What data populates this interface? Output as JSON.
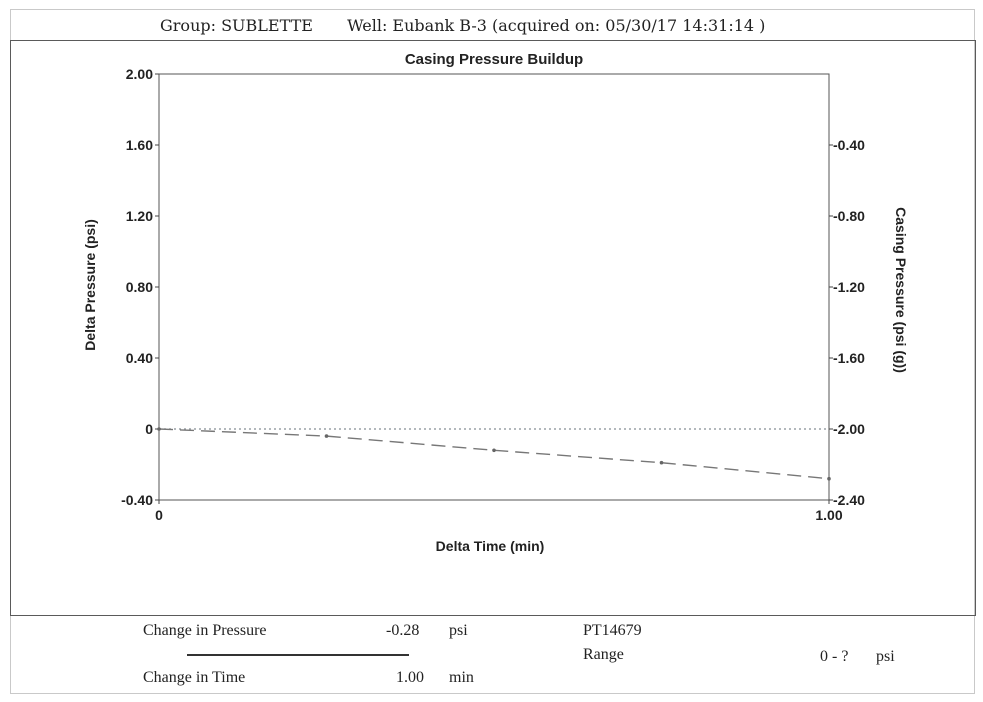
{
  "header": {
    "group_label": "Group: SUBLETTE",
    "well_label": "Well: Eubank B-3 (acquired on: 05/30/17 14:31:14 )"
  },
  "chart_data": {
    "type": "line",
    "title": "Casing Pressure Buildup",
    "xlabel": "Delta Time (min)",
    "ylabel": "Delta Pressure (psi)",
    "ylabel_right": "Casing Pressure (psi (g))",
    "xlim": [
      0,
      1.0
    ],
    "ylim": [
      -0.4,
      2.0
    ],
    "ylim_right": [
      -2.4,
      0.0
    ],
    "x_ticks": [
      "0",
      "1.00"
    ],
    "y_ticks": [
      "-0.40",
      "0",
      "0.40",
      "0.80",
      "1.20",
      "1.60",
      "2.00"
    ],
    "y_ticks_right": [
      "-2.40",
      "-2.00",
      "-1.60",
      "-1.20",
      "-0.80",
      "-0.40"
    ],
    "grid": false,
    "reference_line": {
      "y": 0,
      "style": "dotted",
      "color": "#9aa0a6"
    },
    "series": [
      {
        "style": "dashed",
        "color": "#777777",
        "x": [
          0,
          0.25,
          0.5,
          0.75,
          1.0
        ],
        "y": [
          0,
          -0.04,
          -0.12,
          -0.19,
          -0.28
        ]
      }
    ]
  },
  "footer": {
    "change_pressure_label": "Change in Pressure",
    "change_pressure_value": "-0.28",
    "change_pressure_unit": "psi",
    "change_time_label": "Change in Time",
    "change_time_value": "1.00",
    "change_time_unit": "min",
    "sensor_id": "PT14679",
    "range_label": "Range",
    "range_value": "0 - ?",
    "range_unit": "psi"
  }
}
